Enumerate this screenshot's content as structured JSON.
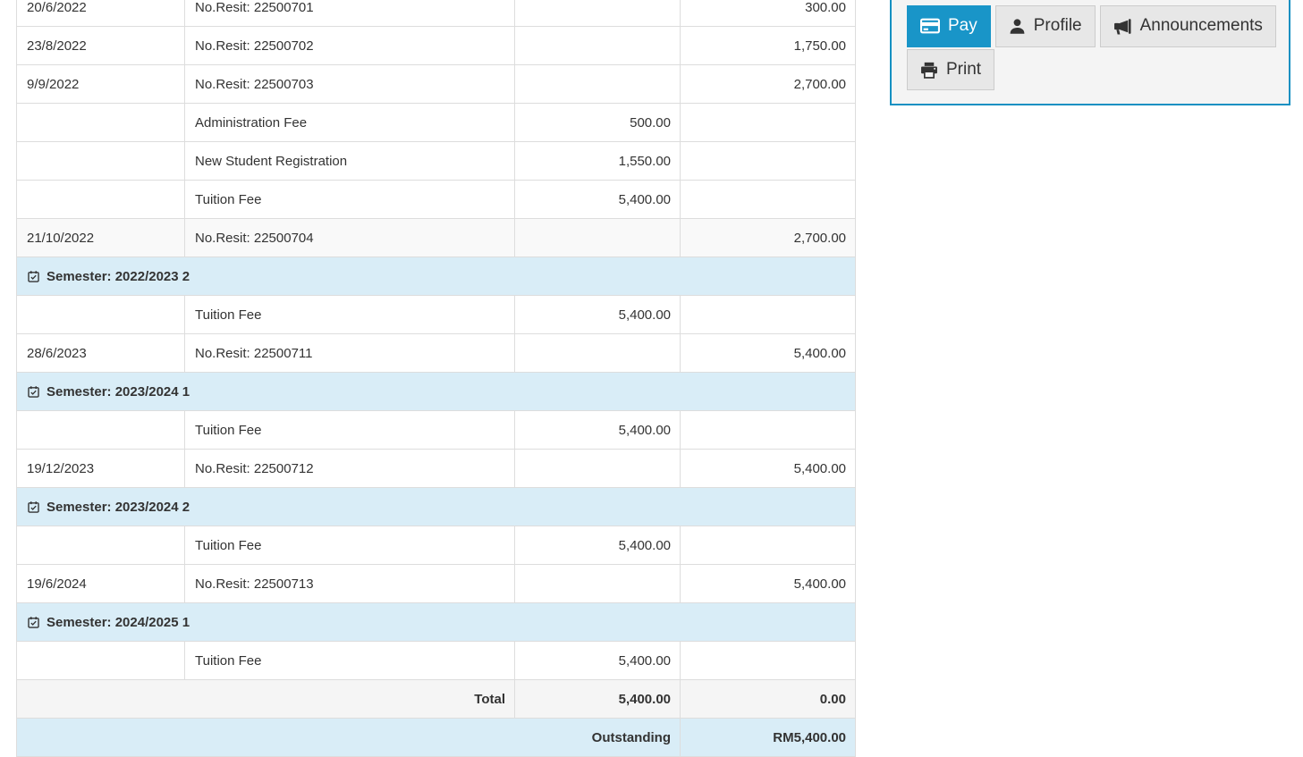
{
  "table": {
    "rows": [
      {
        "type": "fee",
        "date": "20/6/2022",
        "desc": "No.Resit: 22500701",
        "charge": "",
        "payment": "300.00",
        "stripe": false
      },
      {
        "type": "fee",
        "date": "23/8/2022",
        "desc": "No.Resit: 22500702",
        "charge": "",
        "payment": "1,750.00",
        "stripe": false
      },
      {
        "type": "fee",
        "date": "9/9/2022",
        "desc": "No.Resit: 22500703",
        "charge": "",
        "payment": "2,700.00",
        "stripe": false
      },
      {
        "type": "fee",
        "date": "",
        "desc": "Administration Fee",
        "charge": "500.00",
        "payment": "",
        "stripe": false
      },
      {
        "type": "fee",
        "date": "",
        "desc": "New Student Registration",
        "charge": "1,550.00",
        "payment": "",
        "stripe": false
      },
      {
        "type": "fee",
        "date": "",
        "desc": "Tuition Fee",
        "charge": "5,400.00",
        "payment": "",
        "stripe": false
      },
      {
        "type": "fee",
        "date": "21/10/2022",
        "desc": "No.Resit: 22500704",
        "charge": "",
        "payment": "2,700.00",
        "stripe": true
      },
      {
        "type": "semester",
        "label": "Semester: 2022/2023 2"
      },
      {
        "type": "fee",
        "date": "",
        "desc": "Tuition Fee",
        "charge": "5,400.00",
        "payment": "",
        "stripe": false
      },
      {
        "type": "fee",
        "date": "28/6/2023",
        "desc": "No.Resit: 22500711",
        "charge": "",
        "payment": "5,400.00",
        "stripe": false
      },
      {
        "type": "semester",
        "label": "Semester: 2023/2024 1"
      },
      {
        "type": "fee",
        "date": "",
        "desc": "Tuition Fee",
        "charge": "5,400.00",
        "payment": "",
        "stripe": false
      },
      {
        "type": "fee",
        "date": "19/12/2023",
        "desc": "No.Resit: 22500712",
        "charge": "",
        "payment": "5,400.00",
        "stripe": false
      },
      {
        "type": "semester",
        "label": "Semester: 2023/2024 2"
      },
      {
        "type": "fee",
        "date": "",
        "desc": "Tuition Fee",
        "charge": "5,400.00",
        "payment": "",
        "stripe": false
      },
      {
        "type": "fee",
        "date": "19/6/2024",
        "desc": "No.Resit: 22500713",
        "charge": "",
        "payment": "5,400.00",
        "stripe": false
      },
      {
        "type": "semester",
        "label": "Semester: 2024/2025 1"
      },
      {
        "type": "fee",
        "date": "",
        "desc": "Tuition Fee",
        "charge": "5,400.00",
        "payment": "",
        "stripe": false
      },
      {
        "type": "total",
        "label": "Total",
        "charge": "5,400.00",
        "payment": "0.00"
      },
      {
        "type": "outstanding",
        "label": "Outstanding",
        "payment": "RM5,400.00"
      }
    ]
  },
  "panel": {
    "buttons": [
      {
        "id": "pay",
        "label": "Pay",
        "icon": "credit-card-icon",
        "active": true
      },
      {
        "id": "profile",
        "label": "Profile",
        "icon": "user-icon",
        "active": false
      },
      {
        "id": "announcements",
        "label": "Announcements",
        "icon": "bullhorn-icon",
        "active": false
      },
      {
        "id": "print",
        "label": "Print",
        "icon": "printer-icon",
        "active": false
      }
    ]
  },
  "colors": {
    "accent": "#1995c8",
    "panel_border": "#1590c2",
    "semester_bg": "#d9edf7",
    "outstanding_bg": "#d9edf7",
    "stripe_bg": "#f9f9f9",
    "total_bg": "#f5f5f5",
    "row_border": "#dddddd",
    "button_bg": "#e7e7e7",
    "button_border": "#cccccc"
  }
}
